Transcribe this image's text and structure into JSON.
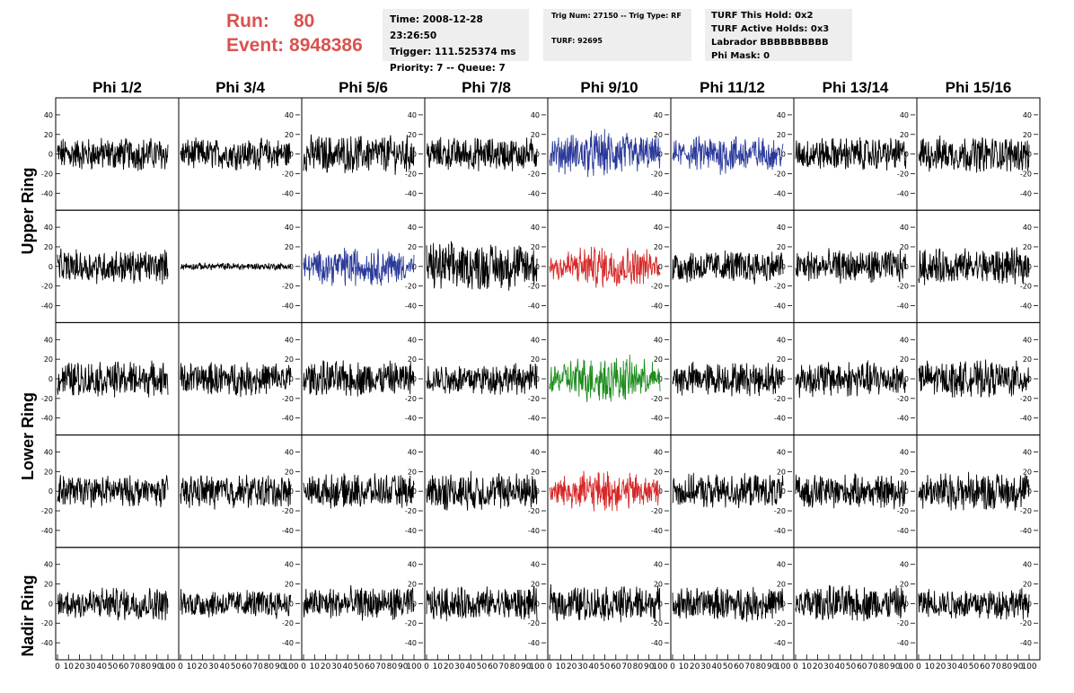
{
  "header": {
    "run_label": "Run:",
    "run_value": "80",
    "event_label": "Event:",
    "event_value": "8948386",
    "time": "Time: 2008-12-28 23:26:50",
    "trigger": "Trigger: 111.525374 ms",
    "priority": "Priority: 7 -- Queue: 7",
    "trig_num": "Trig Num: 27150 -- Trig Type: RF",
    "turf": "TURF: 92695",
    "turf_this_hold": "TURF This Hold: 0x2",
    "turf_active_holds": "TURF Active Holds: 0x3",
    "labrador": "Labrador BBBBBBBBBB",
    "phi_mask": "Phi Mask: 0"
  },
  "columns": [
    "Phi 1/2",
    "Phi 3/4",
    "Phi 5/6",
    "Phi 7/8",
    "Phi 9/10",
    "Phi 11/12",
    "Phi 13/14",
    "Phi 15/16"
  ],
  "row_labels": [
    "Upper Ring",
    "Lower Ring",
    "Nadir Ring"
  ],
  "colors": {
    "default": "#000000",
    "blue": "#2b3a9a",
    "red": "#d62828",
    "green": "#1e8c1e"
  },
  "chart_data": {
    "type": "line",
    "description_rows": 5,
    "description_cols": 8,
    "xlim": [
      0,
      100
    ],
    "ylim": [
      -50,
      50
    ],
    "x_ticks": [
      "0",
      "10",
      "20",
      "30",
      "40",
      "50",
      "60",
      "70",
      "80",
      "90",
      "100"
    ],
    "y_ticks": [
      "40",
      "20",
      "0",
      "-20",
      "-40"
    ],
    "panels": [
      [
        {
          "color": "default",
          "amp": 14
        },
        {
          "color": "default",
          "amp": 13
        },
        {
          "color": "default",
          "amp": 16
        },
        {
          "color": "default",
          "amp": 14
        },
        {
          "color": "blue",
          "amp": 20
        },
        {
          "color": "blue",
          "amp": 17
        },
        {
          "color": "default",
          "amp": 14
        },
        {
          "color": "default",
          "amp": 15
        }
      ],
      [
        {
          "color": "default",
          "amp": 14
        },
        {
          "color": "default",
          "amp": 3
        },
        {
          "color": "blue",
          "amp": 17
        },
        {
          "color": "default",
          "amp": 20
        },
        {
          "color": "red",
          "amp": 18
        },
        {
          "color": "default",
          "amp": 14
        },
        {
          "color": "default",
          "amp": 14
        },
        {
          "color": "default",
          "amp": 15
        }
      ],
      [
        {
          "color": "default",
          "amp": 15
        },
        {
          "color": "default",
          "amp": 14
        },
        {
          "color": "default",
          "amp": 15
        },
        {
          "color": "default",
          "amp": 13
        },
        {
          "color": "green",
          "amp": 20
        },
        {
          "color": "default",
          "amp": 14
        },
        {
          "color": "default",
          "amp": 15
        },
        {
          "color": "default",
          "amp": 15
        }
      ],
      [
        {
          "color": "default",
          "amp": 13
        },
        {
          "color": "default",
          "amp": 14
        },
        {
          "color": "default",
          "amp": 14
        },
        {
          "color": "default",
          "amp": 16
        },
        {
          "color": "red",
          "amp": 17
        },
        {
          "color": "default",
          "amp": 14
        },
        {
          "color": "default",
          "amp": 14
        },
        {
          "color": "default",
          "amp": 16
        }
      ],
      [
        {
          "color": "default",
          "amp": 14
        },
        {
          "color": "default",
          "amp": 12
        },
        {
          "color": "default",
          "amp": 14
        },
        {
          "color": "default",
          "amp": 14
        },
        {
          "color": "default",
          "amp": 15
        },
        {
          "color": "default",
          "amp": 14
        },
        {
          "color": "default",
          "amp": 15
        },
        {
          "color": "default",
          "amp": 13
        }
      ]
    ]
  }
}
